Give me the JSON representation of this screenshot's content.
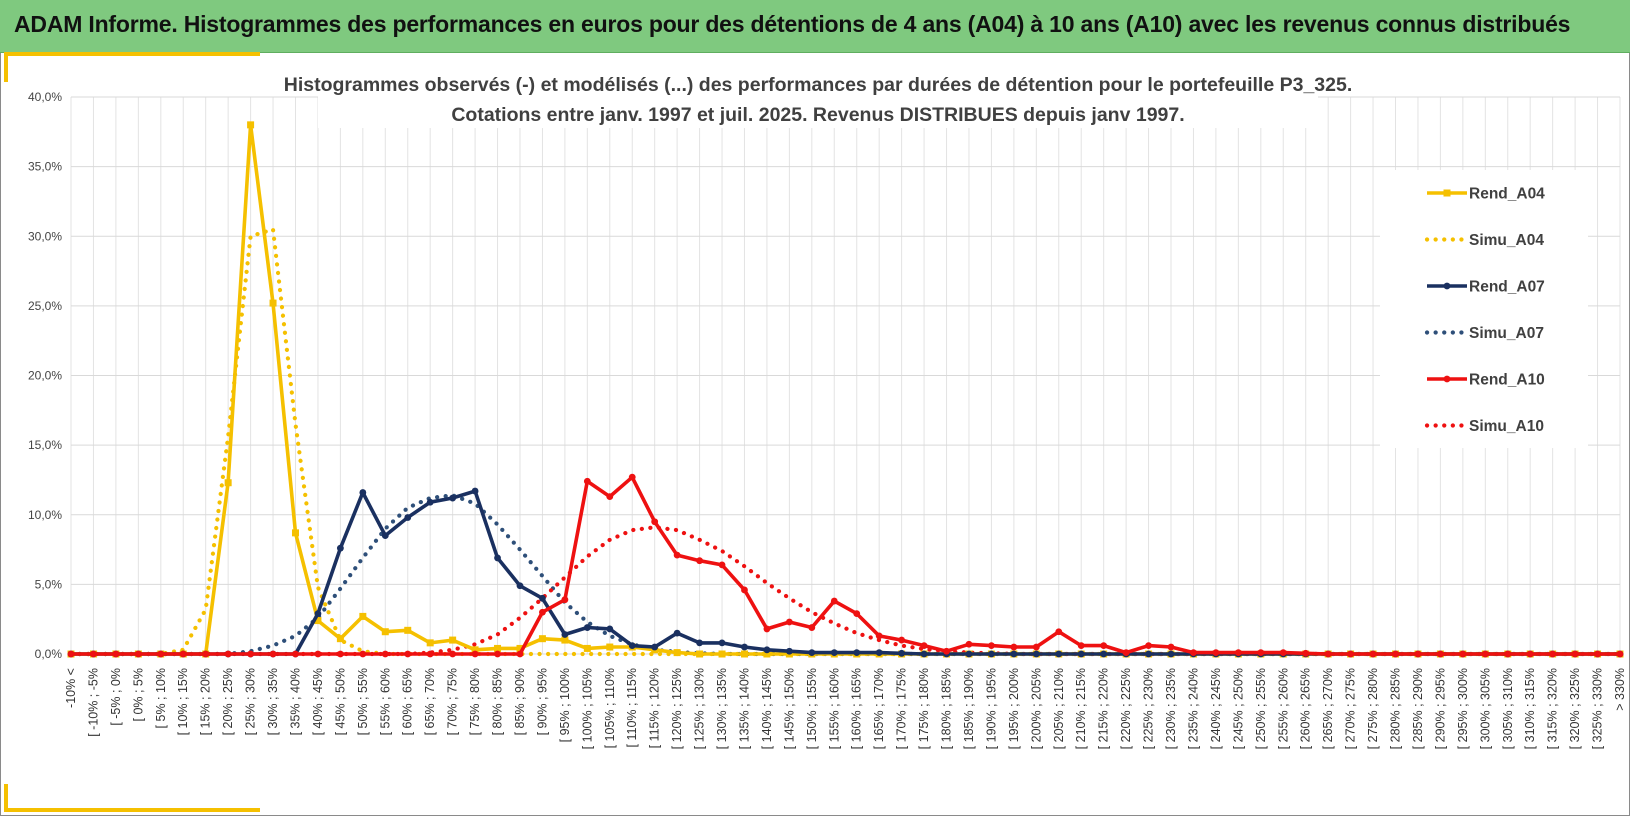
{
  "header": {
    "title": "ADAM Informe. Histogrammes des performances en euros pour des détentions de 4 ans (A04) à 10 ans (A10) avec les revenus connus distribués"
  },
  "colors": {
    "banner": "#7fc97f",
    "accent_yellow": "#f5c000",
    "A04": "#f5c000",
    "A07": "#1a3060",
    "A10": "#ee1111",
    "sim_A07": "#2e4f79"
  },
  "chart_data": {
    "type": "line",
    "title": "Histogrammes observés (-) et modélisés (...) des performances par durées de détention pour le portefeuille P3_325.",
    "subtitle": "Cotations entre janv. 1997 et juil. 2025. Revenus DISTRIBUES depuis janv 1997.",
    "xlabel": "",
    "ylabel": "",
    "ylim": [
      0,
      40
    ],
    "yticks": [
      "0,0%",
      "5,0%",
      "10,0%",
      "15,0%",
      "20,0%",
      "25,0%",
      "30,0%",
      "35,0%",
      "40,0%"
    ],
    "grid": true,
    "legend_position": "right",
    "categories": [
      "-10% <",
      "[ -10% ; -5%",
      "[ -5% ; 0%",
      "[ 0% ; 5%",
      "[ 5% ; 10%",
      "[ 10% ; 15%",
      "[ 15% ; 20%",
      "[ 20% ; 25%",
      "[ 25% ; 30%",
      "[ 30% ; 35%",
      "[ 35% ; 40%",
      "[ 40% ; 45%",
      "[ 45% ; 50%",
      "[ 50% ; 55%",
      "[ 55% ; 60%",
      "[ 60% ; 65%",
      "[ 65% ; 70%",
      "[ 70% ; 75%",
      "[ 75% ; 80%",
      "[ 80% ; 85%",
      "[ 85% ; 90%",
      "[ 90% ; 95%",
      "[ 95% ; 100%",
      "[ 100% ; 105%",
      "[ 105% ; 110%",
      "[ 110% ; 115%",
      "[ 115% ; 120%",
      "[ 120% ; 125%",
      "[ 125% ; 130%",
      "[ 130% ; 135%",
      "[ 135% ; 140%",
      "[ 140% ; 145%",
      "[ 145% ; 150%",
      "[ 150% ; 155%",
      "[ 155% ; 160%",
      "[ 160% ; 165%",
      "[ 165% ; 170%",
      "[ 170% ; 175%",
      "[ 175% ; 180%",
      "[ 180% ; 185%",
      "[ 185% ; 190%",
      "[ 190% ; 195%",
      "[ 195% ; 200%",
      "[ 200% ; 205%",
      "[ 205% ; 210%",
      "[ 210% ; 215%",
      "[ 215% ; 220%",
      "[ 220% ; 225%",
      "[ 225% ; 230%",
      "[ 230% ; 235%",
      "[ 235% ; 240%",
      "[ 240% ; 245%",
      "[ 245% ; 250%",
      "[ 250% ; 255%",
      "[ 255% ; 260%",
      "[ 260% ; 265%",
      "[ 265% ; 270%",
      "[ 270% ; 275%",
      "[ 275% ; 280%",
      "[ 280% ; 285%",
      "[ 285% ; 290%",
      "[ 290% ; 295%",
      "[ 295% ; 300%",
      "[ 300% ; 305%",
      "[ 305% ; 310%",
      "[ 310% ; 315%",
      "[ 315% ; 320%",
      "[ 320% ; 325%",
      "[ 325% ; 330%",
      "> 330%"
    ],
    "series": [
      {
        "name": "Rend_A04",
        "style": "solid",
        "marker": "square",
        "color": "#f5c000",
        "values": [
          0,
          0,
          0,
          0,
          0,
          0,
          0,
          12.3,
          38.0,
          25.2,
          8.7,
          2.4,
          1.1,
          2.7,
          1.6,
          1.7,
          0.8,
          1.0,
          0.3,
          0.4,
          0.4,
          1.1,
          1.0,
          0.4,
          0.5,
          0.5,
          0.3,
          0.1,
          0,
          0,
          0,
          0,
          0,
          0,
          0,
          0,
          0,
          0,
          0,
          0,
          0,
          0,
          0,
          0,
          0,
          0,
          0,
          0,
          0,
          0,
          0,
          0,
          0,
          0,
          0,
          0,
          0,
          0,
          0,
          0,
          0,
          0,
          0,
          0,
          0,
          0,
          0,
          0,
          0,
          0
        ]
      },
      {
        "name": "Simu_A04",
        "style": "dotted",
        "color": "#f5c000",
        "values": [
          0,
          0,
          0,
          0,
          0,
          0.3,
          3.2,
          15.6,
          30.0,
          30.5,
          16.5,
          4.8,
          1.0,
          0.2,
          0,
          0,
          0,
          0,
          0,
          0,
          0,
          0,
          0,
          0,
          0,
          0,
          0,
          0,
          0,
          0,
          0,
          0,
          0,
          0,
          0,
          0,
          0,
          0,
          0,
          0,
          0,
          0,
          0,
          0,
          0,
          0,
          0,
          0,
          0,
          0,
          0,
          0,
          0,
          0,
          0,
          0,
          0,
          0,
          0,
          0,
          0,
          0,
          0,
          0,
          0,
          0,
          0,
          0,
          0,
          0
        ]
      },
      {
        "name": "Rend_A07",
        "style": "solid",
        "marker": "circle",
        "color": "#1a3060",
        "values": [
          0,
          0,
          0,
          0,
          0,
          0,
          0,
          0,
          0,
          0,
          0,
          2.9,
          7.6,
          11.6,
          8.5,
          9.8,
          10.9,
          11.2,
          11.7,
          6.9,
          4.9,
          4.0,
          1.4,
          1.9,
          1.8,
          0.6,
          0.5,
          1.5,
          0.8,
          0.8,
          0.5,
          0.3,
          0.2,
          0.1,
          0.1,
          0.1,
          0.1,
          0.05,
          0,
          0,
          0,
          0,
          0,
          0,
          0,
          0,
          0,
          0,
          0,
          0,
          0,
          0,
          0,
          0,
          0,
          0,
          0,
          0,
          0,
          0,
          0,
          0,
          0,
          0,
          0,
          0,
          0,
          0,
          0,
          0
        ]
      },
      {
        "name": "Simu_A07",
        "style": "dotted",
        "color": "#2e4f79",
        "values": [
          0,
          0,
          0,
          0,
          0,
          0,
          0,
          0,
          0.2,
          0.6,
          1.3,
          2.6,
          4.7,
          6.9,
          9.0,
          10.5,
          11.2,
          11.4,
          10.8,
          9.3,
          7.5,
          5.6,
          3.7,
          2.3,
          1.3,
          0.7,
          0.3,
          0.15,
          0.05,
          0,
          0,
          0,
          0,
          0,
          0,
          0,
          0,
          0,
          0,
          0,
          0,
          0,
          0,
          0,
          0,
          0,
          0,
          0,
          0,
          0,
          0,
          0,
          0,
          0,
          0,
          0,
          0,
          0,
          0,
          0,
          0,
          0,
          0,
          0,
          0,
          0,
          0,
          0,
          0,
          0
        ]
      },
      {
        "name": "Rend_A10",
        "style": "solid",
        "marker": "circle",
        "color": "#ee1111",
        "values": [
          0,
          0,
          0,
          0,
          0,
          0,
          0,
          0,
          0,
          0,
          0,
          0,
          0,
          0,
          0,
          0,
          0,
          0,
          0,
          0,
          0,
          3.0,
          3.9,
          12.4,
          11.3,
          12.7,
          9.5,
          7.1,
          6.7,
          6.4,
          4.6,
          1.8,
          2.3,
          1.9,
          3.8,
          2.9,
          1.3,
          1.0,
          0.6,
          0.2,
          0.7,
          0.6,
          0.5,
          0.5,
          1.6,
          0.6,
          0.6,
          0.1,
          0.6,
          0.5,
          0.1,
          0.1,
          0.1,
          0.1,
          0.1,
          0.05,
          0,
          0,
          0,
          0,
          0,
          0,
          0,
          0,
          0,
          0,
          0,
          0,
          0,
          0
        ]
      },
      {
        "name": "Simu_A10",
        "style": "dotted",
        "color": "#ee1111",
        "values": [
          0,
          0,
          0,
          0,
          0,
          0,
          0,
          0,
          0,
          0,
          0,
          0,
          0,
          0,
          0,
          0,
          0.1,
          0.3,
          0.7,
          1.4,
          2.6,
          4.0,
          5.5,
          7.0,
          8.2,
          8.9,
          9.1,
          8.9,
          8.2,
          7.4,
          6.3,
          5.1,
          4.0,
          3.0,
          2.2,
          1.5,
          1.0,
          0.6,
          0.35,
          0.2,
          0.1,
          0.05,
          0,
          0,
          0,
          0,
          0,
          0,
          0,
          0,
          0,
          0,
          0,
          0,
          0,
          0,
          0,
          0,
          0,
          0,
          0,
          0,
          0,
          0,
          0,
          0,
          0,
          0,
          0,
          0
        ]
      }
    ]
  }
}
